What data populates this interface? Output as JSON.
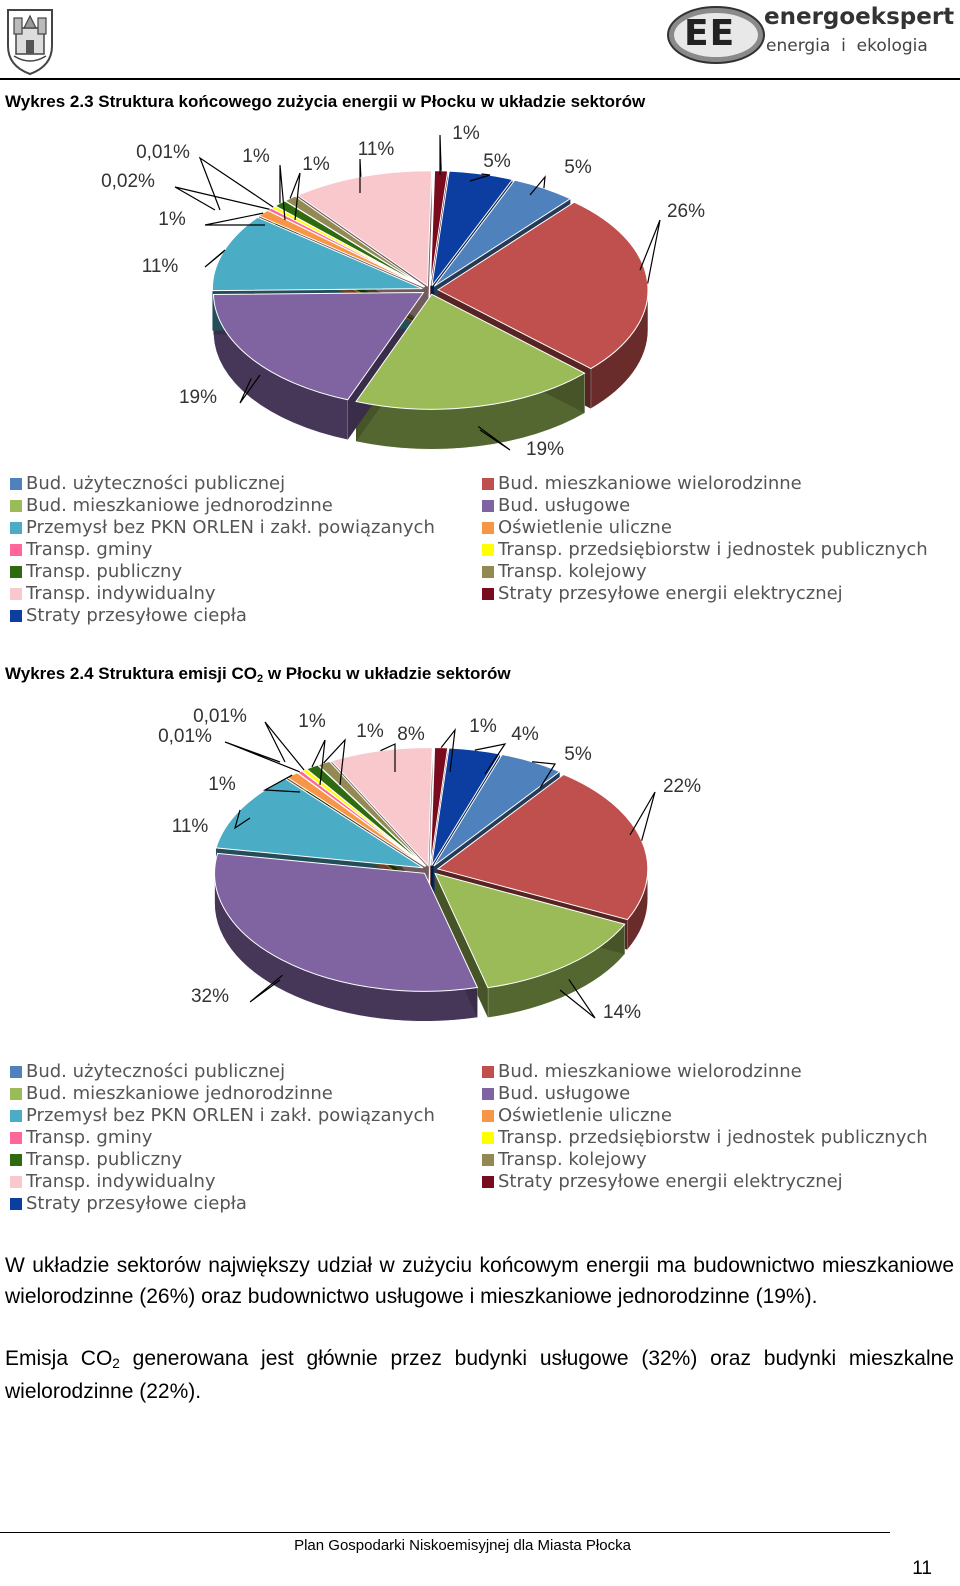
{
  "header": {
    "logo_main": "EE",
    "logo_brand": "energoekspert",
    "logo_tagline": "energia  i  ekologia"
  },
  "figure1": {
    "caption": "Wykres 2.3 Struktura końcowego zużycia energii w Płocku w układzie sektorów"
  },
  "figure2": {
    "caption_pre": "Wykres 2.4 Struktura emisji CO",
    "caption_sub": "2",
    "caption_post": " w Płocku w układzie sektorów"
  },
  "legend": [
    {
      "label": "Bud. użyteczności publicznej",
      "color": "#4f81bd"
    },
    {
      "label": "Bud. mieszkaniowe wielorodzinne",
      "color": "#c0504d"
    },
    {
      "label": "Bud. mieszkaniowe jednorodzinne",
      "color": "#9bbb59"
    },
    {
      "label": "Bud. usługowe",
      "color": "#8064a2"
    },
    {
      "label": "Przemysł bez PKN ORLEN i zakł. powiązanych",
      "color": "#4bacc6"
    },
    {
      "label": "Oświetlenie uliczne",
      "color": "#f79646"
    },
    {
      "label": "Transp. gminy",
      "color": "#ff6699"
    },
    {
      "label": "Transp. przedsiębiorstw i jednostek publicznych",
      "color": "#ffff00"
    },
    {
      "label": "Transp. publiczny",
      "color": "#2d6a10"
    },
    {
      "label": "Transp. kolejowy",
      "color": "#938953"
    },
    {
      "label": "Transp. indywidualny",
      "color": "#f8c8cc"
    },
    {
      "label": "Straty przesyłowe energii elektrycznej",
      "color": "#7a0a1e"
    },
    {
      "label": "Straty przesyłowe ciepła",
      "color": "#0b3ea0"
    }
  ],
  "chart_data": [
    {
      "type": "pie",
      "title": "Wykres 2.3 Struktura końcowego zużycia energii w Płocku w układzie sektorów",
      "unit": "%",
      "slices": [
        {
          "name": "Straty przesyłowe energii elektrycznej",
          "label": "1%",
          "value": 1
        },
        {
          "name": "Straty przesyłowe ciepła",
          "label": "5%",
          "value": 5
        },
        {
          "name": "Bud. użyteczności publicznej",
          "label": "5%",
          "value": 5
        },
        {
          "name": "Bud. mieszkaniowe wielorodzinne",
          "label": "26%",
          "value": 26
        },
        {
          "name": "Bud. mieszkaniowe jednorodzinne",
          "label": "19%",
          "value": 19
        },
        {
          "name": "Bud. usługowe",
          "label": "19%",
          "value": 19
        },
        {
          "name": "Przemysł bez PKN ORLEN i zakł. powiązanych",
          "label": "11%",
          "value": 11
        },
        {
          "name": "Oświetlenie uliczne",
          "label": "1%",
          "value": 1
        },
        {
          "name": "Transp. gminy",
          "label": "0,02%",
          "value": 0.02
        },
        {
          "name": "Transp. przedsiębiorstw i jednostek publicznych",
          "label": "0,01%",
          "value": 0.01
        },
        {
          "name": "Transp. publiczny",
          "label": "1%",
          "value": 1
        },
        {
          "name": "Transp. kolejowy",
          "label": "1%",
          "value": 1
        },
        {
          "name": "Transp. indywidualny",
          "label": "11%",
          "value": 11
        }
      ]
    },
    {
      "type": "pie",
      "title": "Wykres 2.4 Struktura emisji CO2 w Płocku w układzie sektorów",
      "unit": "%",
      "slices": [
        {
          "name": "Straty przesyłowe energii elektrycznej",
          "label": "1%",
          "value": 1
        },
        {
          "name": "Straty przesyłowe ciepła",
          "label": "4%",
          "value": 4
        },
        {
          "name": "Bud. użyteczności publicznej",
          "label": "5%",
          "value": 5
        },
        {
          "name": "Bud. mieszkaniowe wielorodzinne",
          "label": "22%",
          "value": 22
        },
        {
          "name": "Bud. mieszkaniowe jednorodzinne",
          "label": "14%",
          "value": 14
        },
        {
          "name": "Bud. usługowe",
          "label": "32%",
          "value": 32
        },
        {
          "name": "Przemysł bez PKN ORLEN i zakł. powiązanych",
          "label": "11%",
          "value": 11
        },
        {
          "name": "Oświetlenie uliczne",
          "label": "1%",
          "value": 1
        },
        {
          "name": "Transp. gminy",
          "label": "0,01%",
          "value": 0.01
        },
        {
          "name": "Transp. przedsiębiorstw i jednostek publicznych",
          "label": "0,01%",
          "value": 0.01
        },
        {
          "name": "Transp. publiczny",
          "label": "1%",
          "value": 1
        },
        {
          "name": "Transp. kolejowy",
          "label": "1%",
          "value": 1
        },
        {
          "name": "Transp. indywidualny",
          "label": "8%",
          "value": 8
        }
      ]
    }
  ],
  "text": {
    "paragraph1": "W układzie sektorów największy udział w zużyciu końcowym energii ma budownictwo mieszkaniowe wielorodzinne (26%) oraz budownictwo usługowe i mieszkaniowe jednorodzinne (19%).",
    "paragraph2_pre": "Emisja CO",
    "paragraph2_sub": "2",
    "paragraph2_post": " generowana jest głównie przez budynki usługowe (32%) oraz budynki mieszkalne wielorodzinne (22%)."
  },
  "footer": {
    "title": "Plan Gospodarki Niskoemisyjnej dla Miasta Płocka",
    "page_number": "11"
  }
}
